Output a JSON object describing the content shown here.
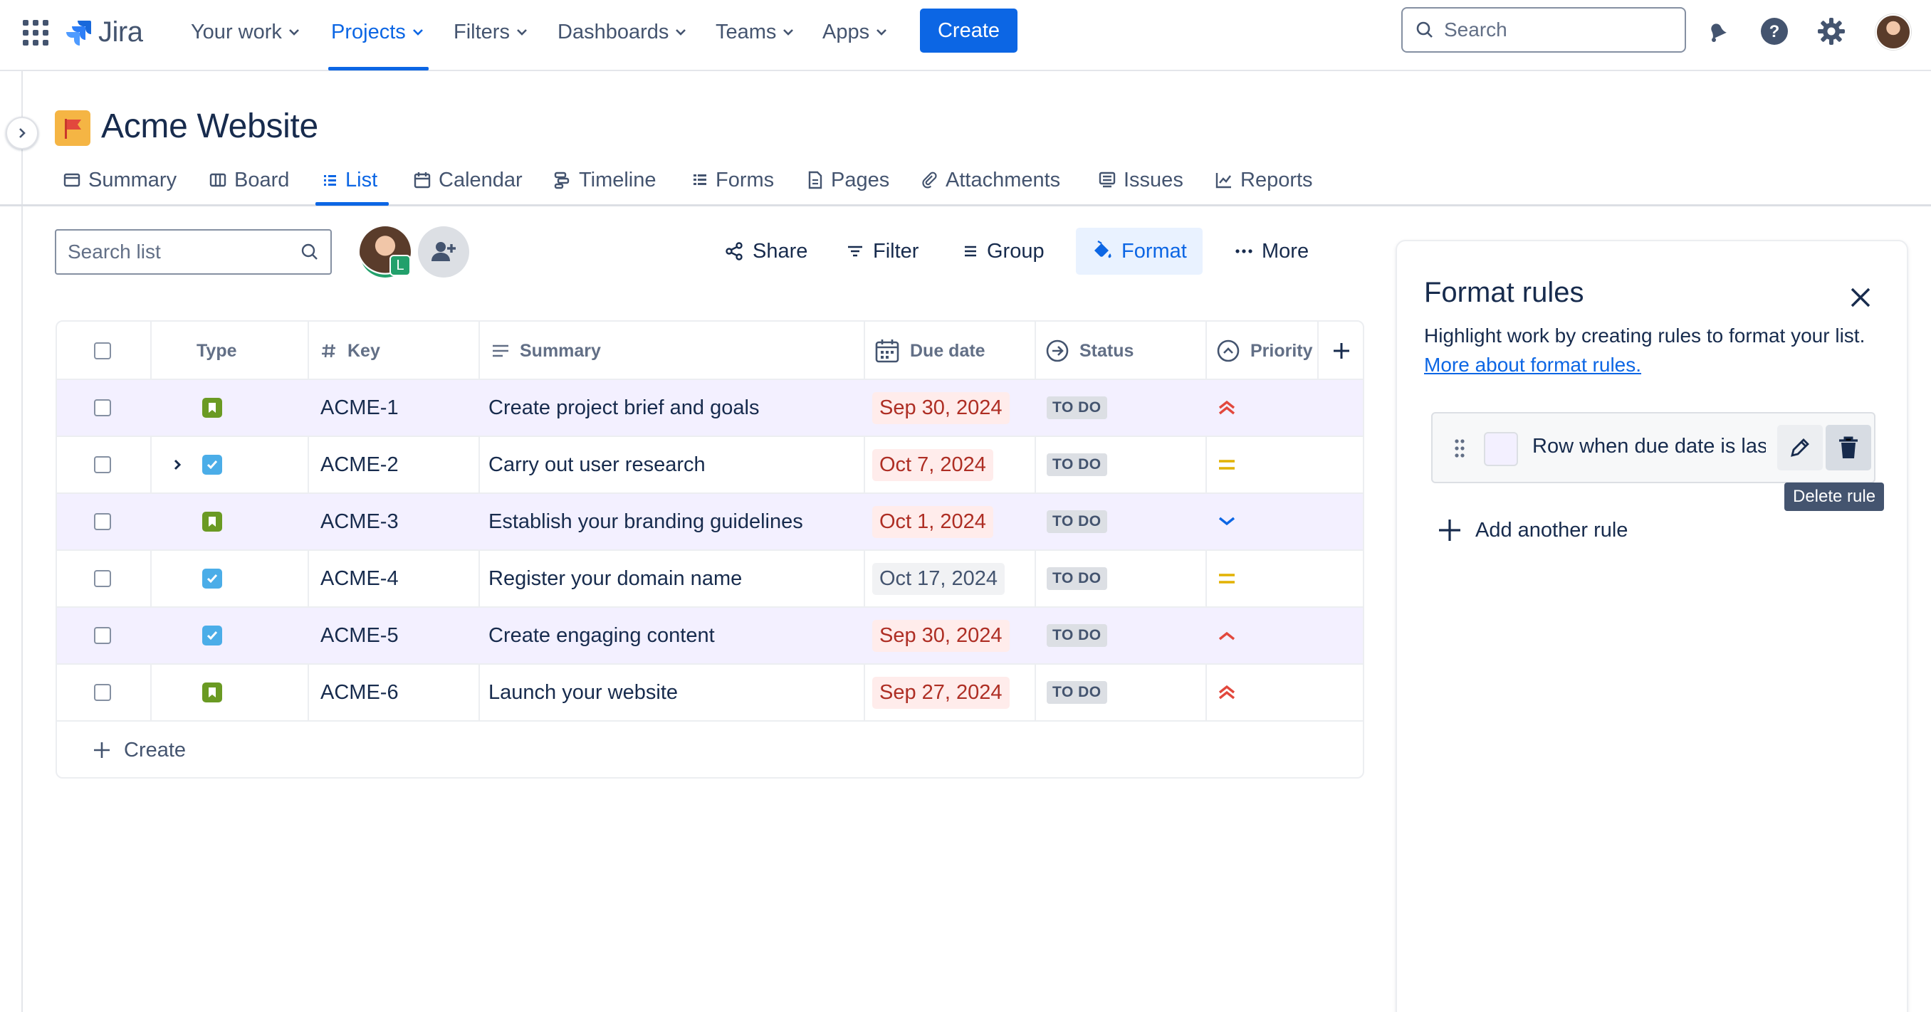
{
  "topnav": {
    "logo_text": "Jira",
    "items": [
      {
        "label": "Your work"
      },
      {
        "label": "Projects"
      },
      {
        "label": "Filters"
      },
      {
        "label": "Dashboards"
      },
      {
        "label": "Teams"
      },
      {
        "label": "Apps"
      }
    ],
    "active_item": "Projects",
    "create_label": "Create",
    "search_placeholder": "Search",
    "accent": "#0c66e4"
  },
  "project": {
    "title": "Acme Website",
    "icon": "flag-icon"
  },
  "tabs": [
    {
      "label": "Summary",
      "icon": "summary-icon"
    },
    {
      "label": "Board",
      "icon": "board-icon"
    },
    {
      "label": "List",
      "icon": "list-icon"
    },
    {
      "label": "Calendar",
      "icon": "calendar-icon"
    },
    {
      "label": "Timeline",
      "icon": "timeline-icon"
    },
    {
      "label": "Forms",
      "icon": "forms-icon"
    },
    {
      "label": "Pages",
      "icon": "pages-icon"
    },
    {
      "label": "Attachments",
      "icon": "paperclip-icon"
    },
    {
      "label": "Issues",
      "icon": "issues-icon"
    },
    {
      "label": "Reports",
      "icon": "reports-icon"
    }
  ],
  "active_tab": "List",
  "toolbar": {
    "search_placeholder": "Search list",
    "avatar_badge": "L",
    "share_label": "Share",
    "filter_label": "Filter",
    "group_label": "Group",
    "format_label": "Format",
    "more_label": "More"
  },
  "table": {
    "headers": {
      "type": "Type",
      "key": "Key",
      "summary": "Summary",
      "due_date": "Due date",
      "status": "Status",
      "priority": "Priority"
    },
    "rows": [
      {
        "key": "ACME-1",
        "summary": "Create project brief and goals",
        "due": "Sep 30, 2024",
        "overdue": true,
        "status": "TO DO",
        "type": "story",
        "priority": "highest",
        "highlighted": true,
        "expandable": false
      },
      {
        "key": "ACME-2",
        "summary": "Carry out user research",
        "due": "Oct 7, 2024",
        "overdue": true,
        "status": "TO DO",
        "type": "task",
        "priority": "medium",
        "highlighted": false,
        "expandable": true
      },
      {
        "key": "ACME-3",
        "summary": "Establish your branding guidelines",
        "due": "Oct 1, 2024",
        "overdue": true,
        "status": "TO DO",
        "type": "story",
        "priority": "low",
        "highlighted": true,
        "expandable": false
      },
      {
        "key": "ACME-4",
        "summary": "Register your domain name",
        "due": "Oct 17, 2024",
        "overdue": false,
        "status": "TO DO",
        "type": "task",
        "priority": "medium",
        "highlighted": false,
        "expandable": false
      },
      {
        "key": "ACME-5",
        "summary": "Create engaging content",
        "due": "Sep 30, 2024",
        "overdue": true,
        "status": "TO DO",
        "type": "task",
        "priority": "high",
        "highlighted": true,
        "expandable": false
      },
      {
        "key": "ACME-6",
        "summary": "Launch your website",
        "due": "Sep 27, 2024",
        "overdue": true,
        "status": "TO DO",
        "type": "story",
        "priority": "highest",
        "highlighted": false,
        "expandable": false
      }
    ],
    "create_label": "Create",
    "colors": {
      "highlight_row": "#f3f0ff",
      "story": "#6a9a23",
      "task": "#4bade8",
      "overdue_bg": "#ffeceb",
      "overdue_text": "#ae2e24",
      "priority_high": "#e2483d",
      "priority_medium": "#e2b203",
      "priority_low": "#0c66e4"
    }
  },
  "format_panel": {
    "title": "Format rules",
    "description": "Highlight work by creating rules to format your list.",
    "link_text": "More about format rules.",
    "rule_text": "Row when due date is last",
    "tooltip": "Delete rule",
    "add_rule_label": "Add another rule"
  }
}
